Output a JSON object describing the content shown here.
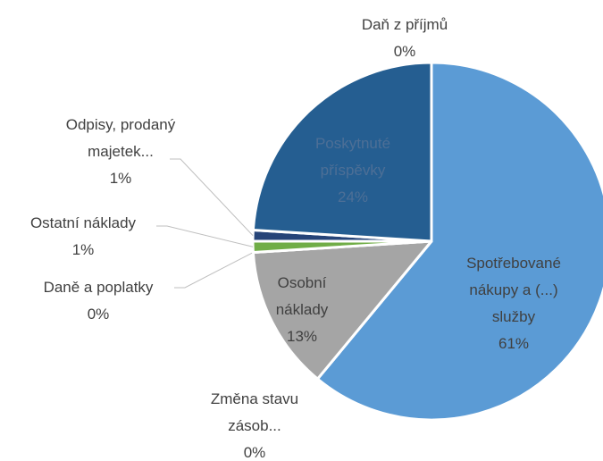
{
  "chart_data": {
    "type": "pie",
    "categories": [
      "Spotřebované nákupy a (...) služby",
      "Změna stavu zásob...",
      "Osobní náklady",
      "Daně a poplatky",
      "Ostatní náklady",
      "Odpisy, prodaný majetek...",
      "Poskytnuté příspěvky",
      "Daň z příjmů"
    ],
    "values": [
      61,
      0,
      13,
      0,
      1,
      1,
      24,
      0
    ],
    "value_labels": [
      "61%",
      "0%",
      "13%",
      "0%",
      "1%",
      "1%",
      "24%",
      "0%"
    ],
    "colors": [
      "#5b9bd5",
      "#ed7d31",
      "#a5a5a5",
      "#ffc000",
      "#70ad47",
      "#264478",
      "#255e91",
      "#9e480e"
    ]
  }
}
